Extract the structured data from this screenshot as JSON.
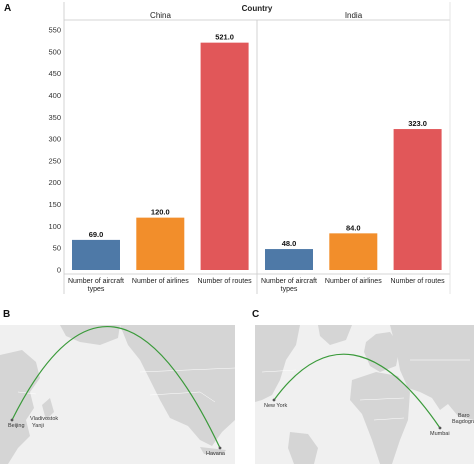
{
  "panel_labels": [
    "A",
    "B",
    "C"
  ],
  "colors": {
    "aircraft": "#4e79a7",
    "airlines": "#f28e2b",
    "routes": "#e15759",
    "arc": "#3a9a3a",
    "land": "#d5d5d5",
    "water": "#f0f0f0"
  },
  "chart_data": {
    "type": "bar",
    "title": "Country",
    "ylim": [
      0,
      550
    ],
    "yticks": [
      0,
      50,
      100,
      150,
      200,
      250,
      300,
      350,
      400,
      450,
      500,
      550
    ],
    "categories": [
      [
        "Number of aircraft",
        "types"
      ],
      [
        "Number of airlines"
      ],
      [
        "Number of routes"
      ]
    ],
    "panels": [
      {
        "name": "China",
        "values": [
          69.0,
          120.0,
          521.0
        ],
        "labels": [
          "69.0",
          "120.0",
          "521.0"
        ]
      },
      {
        "name": "India",
        "values": [
          48.0,
          84.0,
          323.0
        ],
        "labels": [
          "48.0",
          "84.0",
          "323.0"
        ]
      }
    ],
    "grid": false
  },
  "maps": {
    "B": {
      "cities": [
        "Vladivostok",
        "Yanji",
        "Beijing",
        "Havana"
      ]
    },
    "C": {
      "cities": [
        "New York",
        "Mumbai",
        "Baro",
        "Bagdogra"
      ]
    }
  }
}
